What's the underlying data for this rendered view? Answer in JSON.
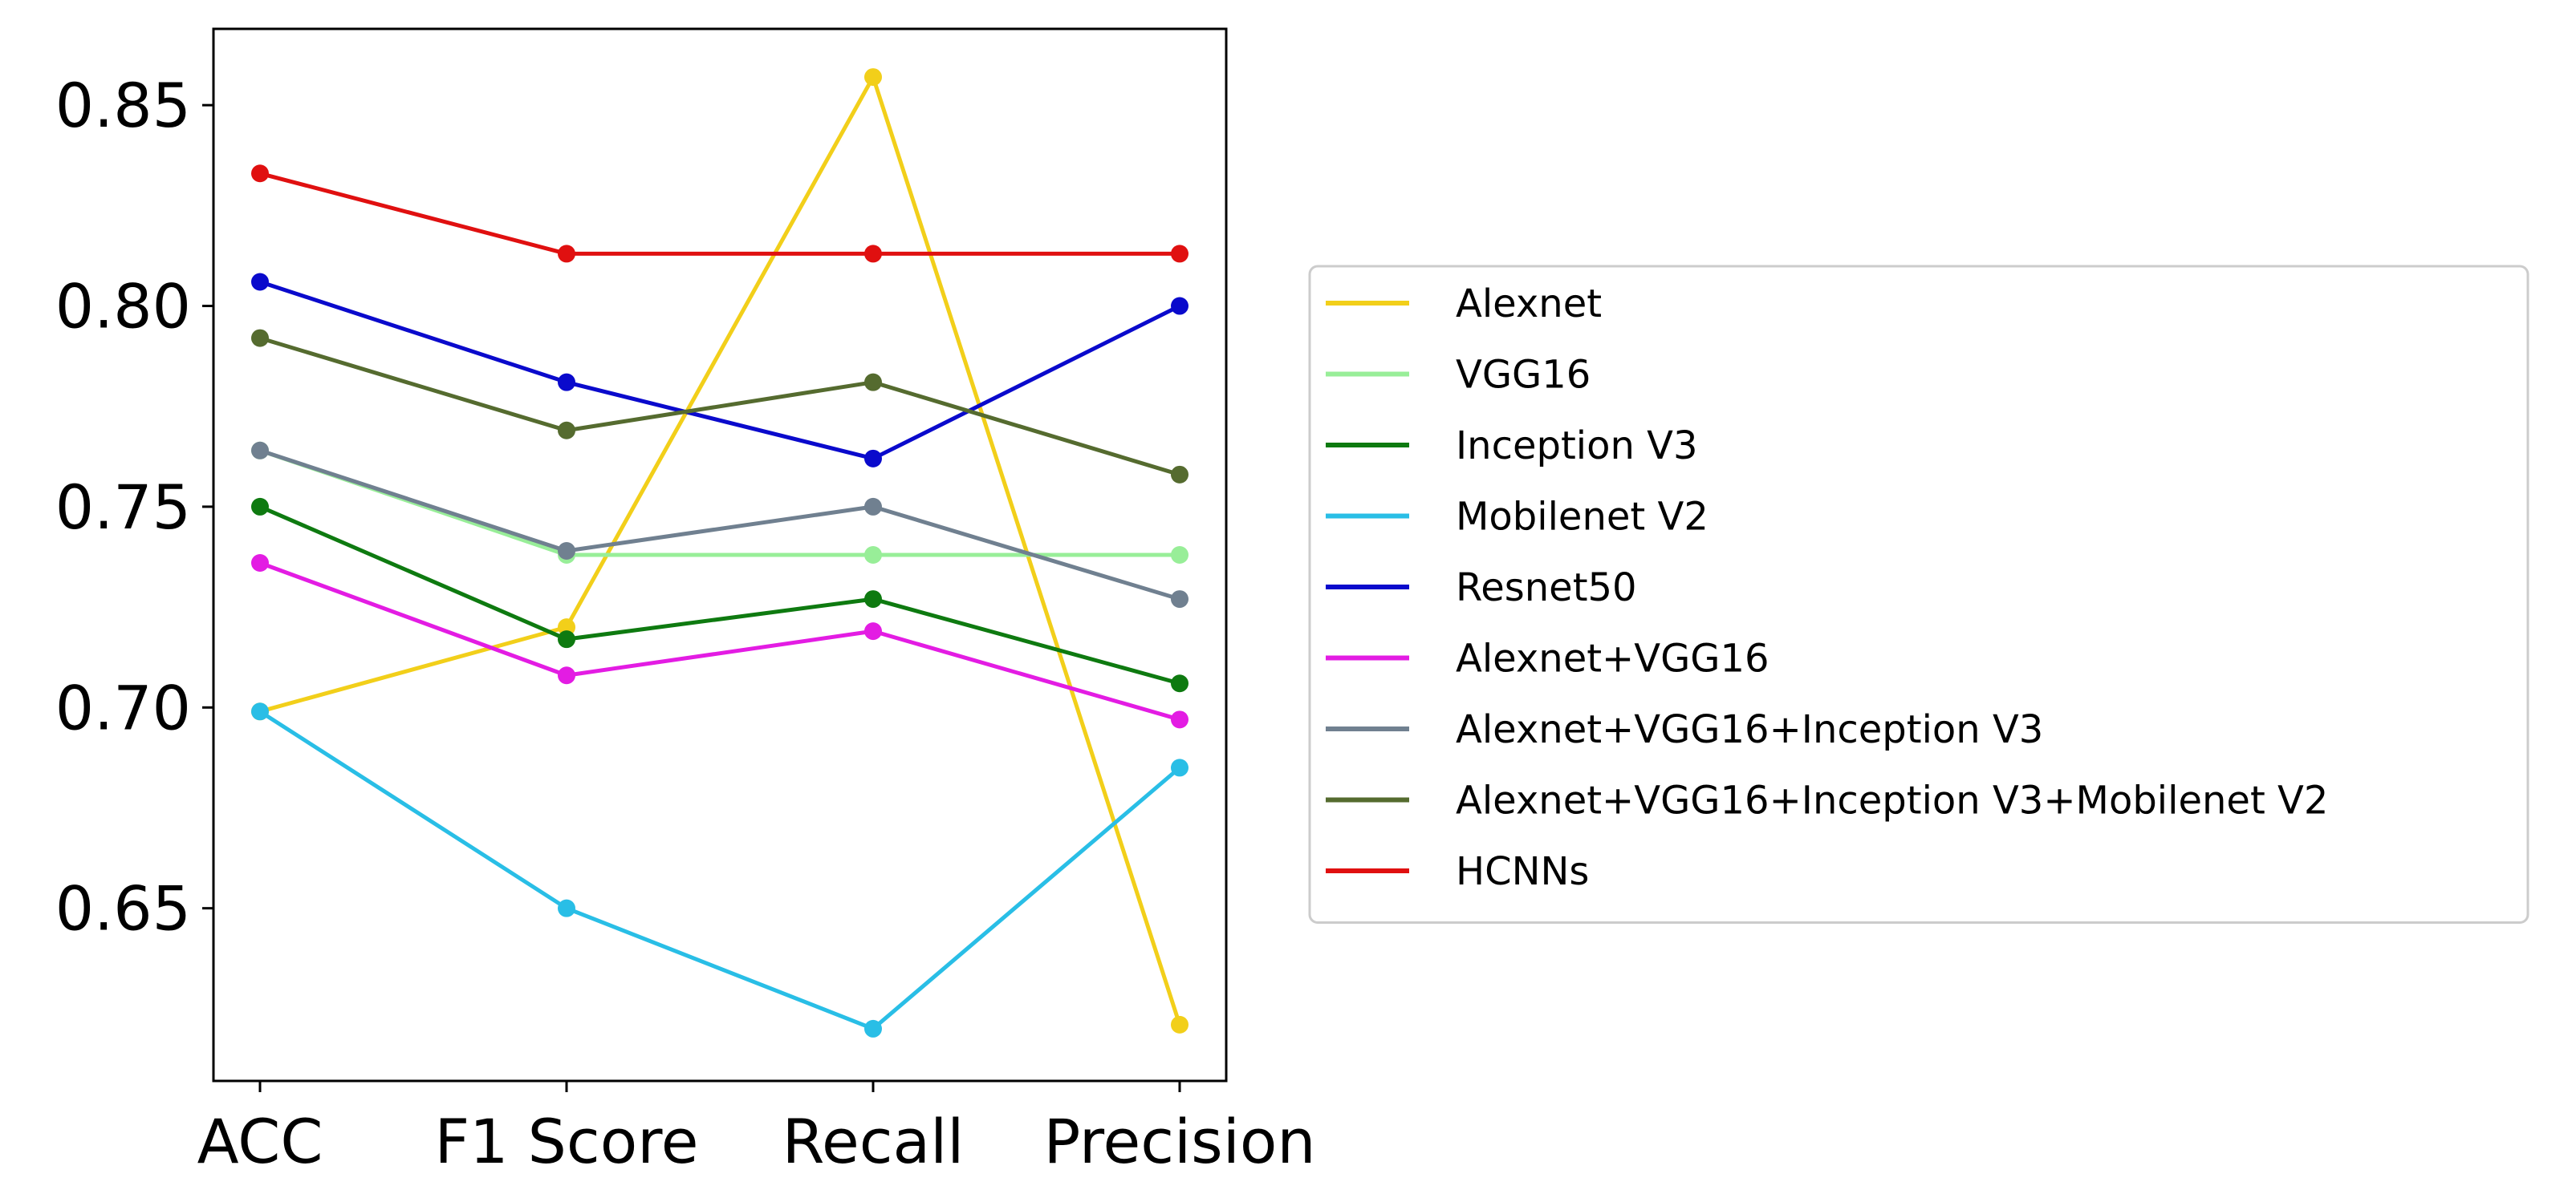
{
  "chart_data": {
    "type": "line",
    "title": "",
    "xlabel": "",
    "ylabel": "",
    "categories": [
      "ACC",
      "F1 Score",
      "Recall",
      "Precision"
    ],
    "ylim": [
      0.607,
      0.869
    ],
    "yticks": [
      0.65,
      0.7,
      0.75,
      0.8,
      0.85
    ],
    "ytick_labels": [
      "0.65",
      "0.70",
      "0.75",
      "0.80",
      "0.85"
    ],
    "grid": false,
    "legend_position": "center-right, outside plot",
    "series": [
      {
        "name": "Alexnet",
        "color": "#F2CF1A",
        "values": [
          0.699,
          0.72,
          0.857,
          0.621
        ]
      },
      {
        "name": "VGG16",
        "color": "#98EE98",
        "values": [
          0.764,
          0.738,
          0.738,
          0.738
        ]
      },
      {
        "name": "Inception V3",
        "color": "#0E7A10",
        "values": [
          0.75,
          0.717,
          0.727,
          0.706
        ]
      },
      {
        "name": "Mobilenet V2",
        "color": "#29BEE6",
        "values": [
          0.699,
          0.65,
          0.62,
          0.685
        ]
      },
      {
        "name": "Resnet50",
        "color": "#0A0ACC",
        "values": [
          0.806,
          0.781,
          0.762,
          0.8
        ]
      },
      {
        "name": "Alexnet+VGG16",
        "color": "#E31CE3",
        "values": [
          0.736,
          0.708,
          0.719,
          0.697
        ]
      },
      {
        "name": "Alexnet+VGG16+Inception V3",
        "color": "#708090",
        "values": [
          0.764,
          0.739,
          0.75,
          0.727
        ]
      },
      {
        "name": "Alexnet+VGG16+Inception V3+Mobilenet V2",
        "color": "#556B2F",
        "values": [
          0.792,
          0.769,
          0.781,
          0.758
        ]
      },
      {
        "name": "HCNNs",
        "color": "#E01010",
        "values": [
          0.833,
          0.813,
          0.813,
          0.813
        ]
      }
    ]
  }
}
